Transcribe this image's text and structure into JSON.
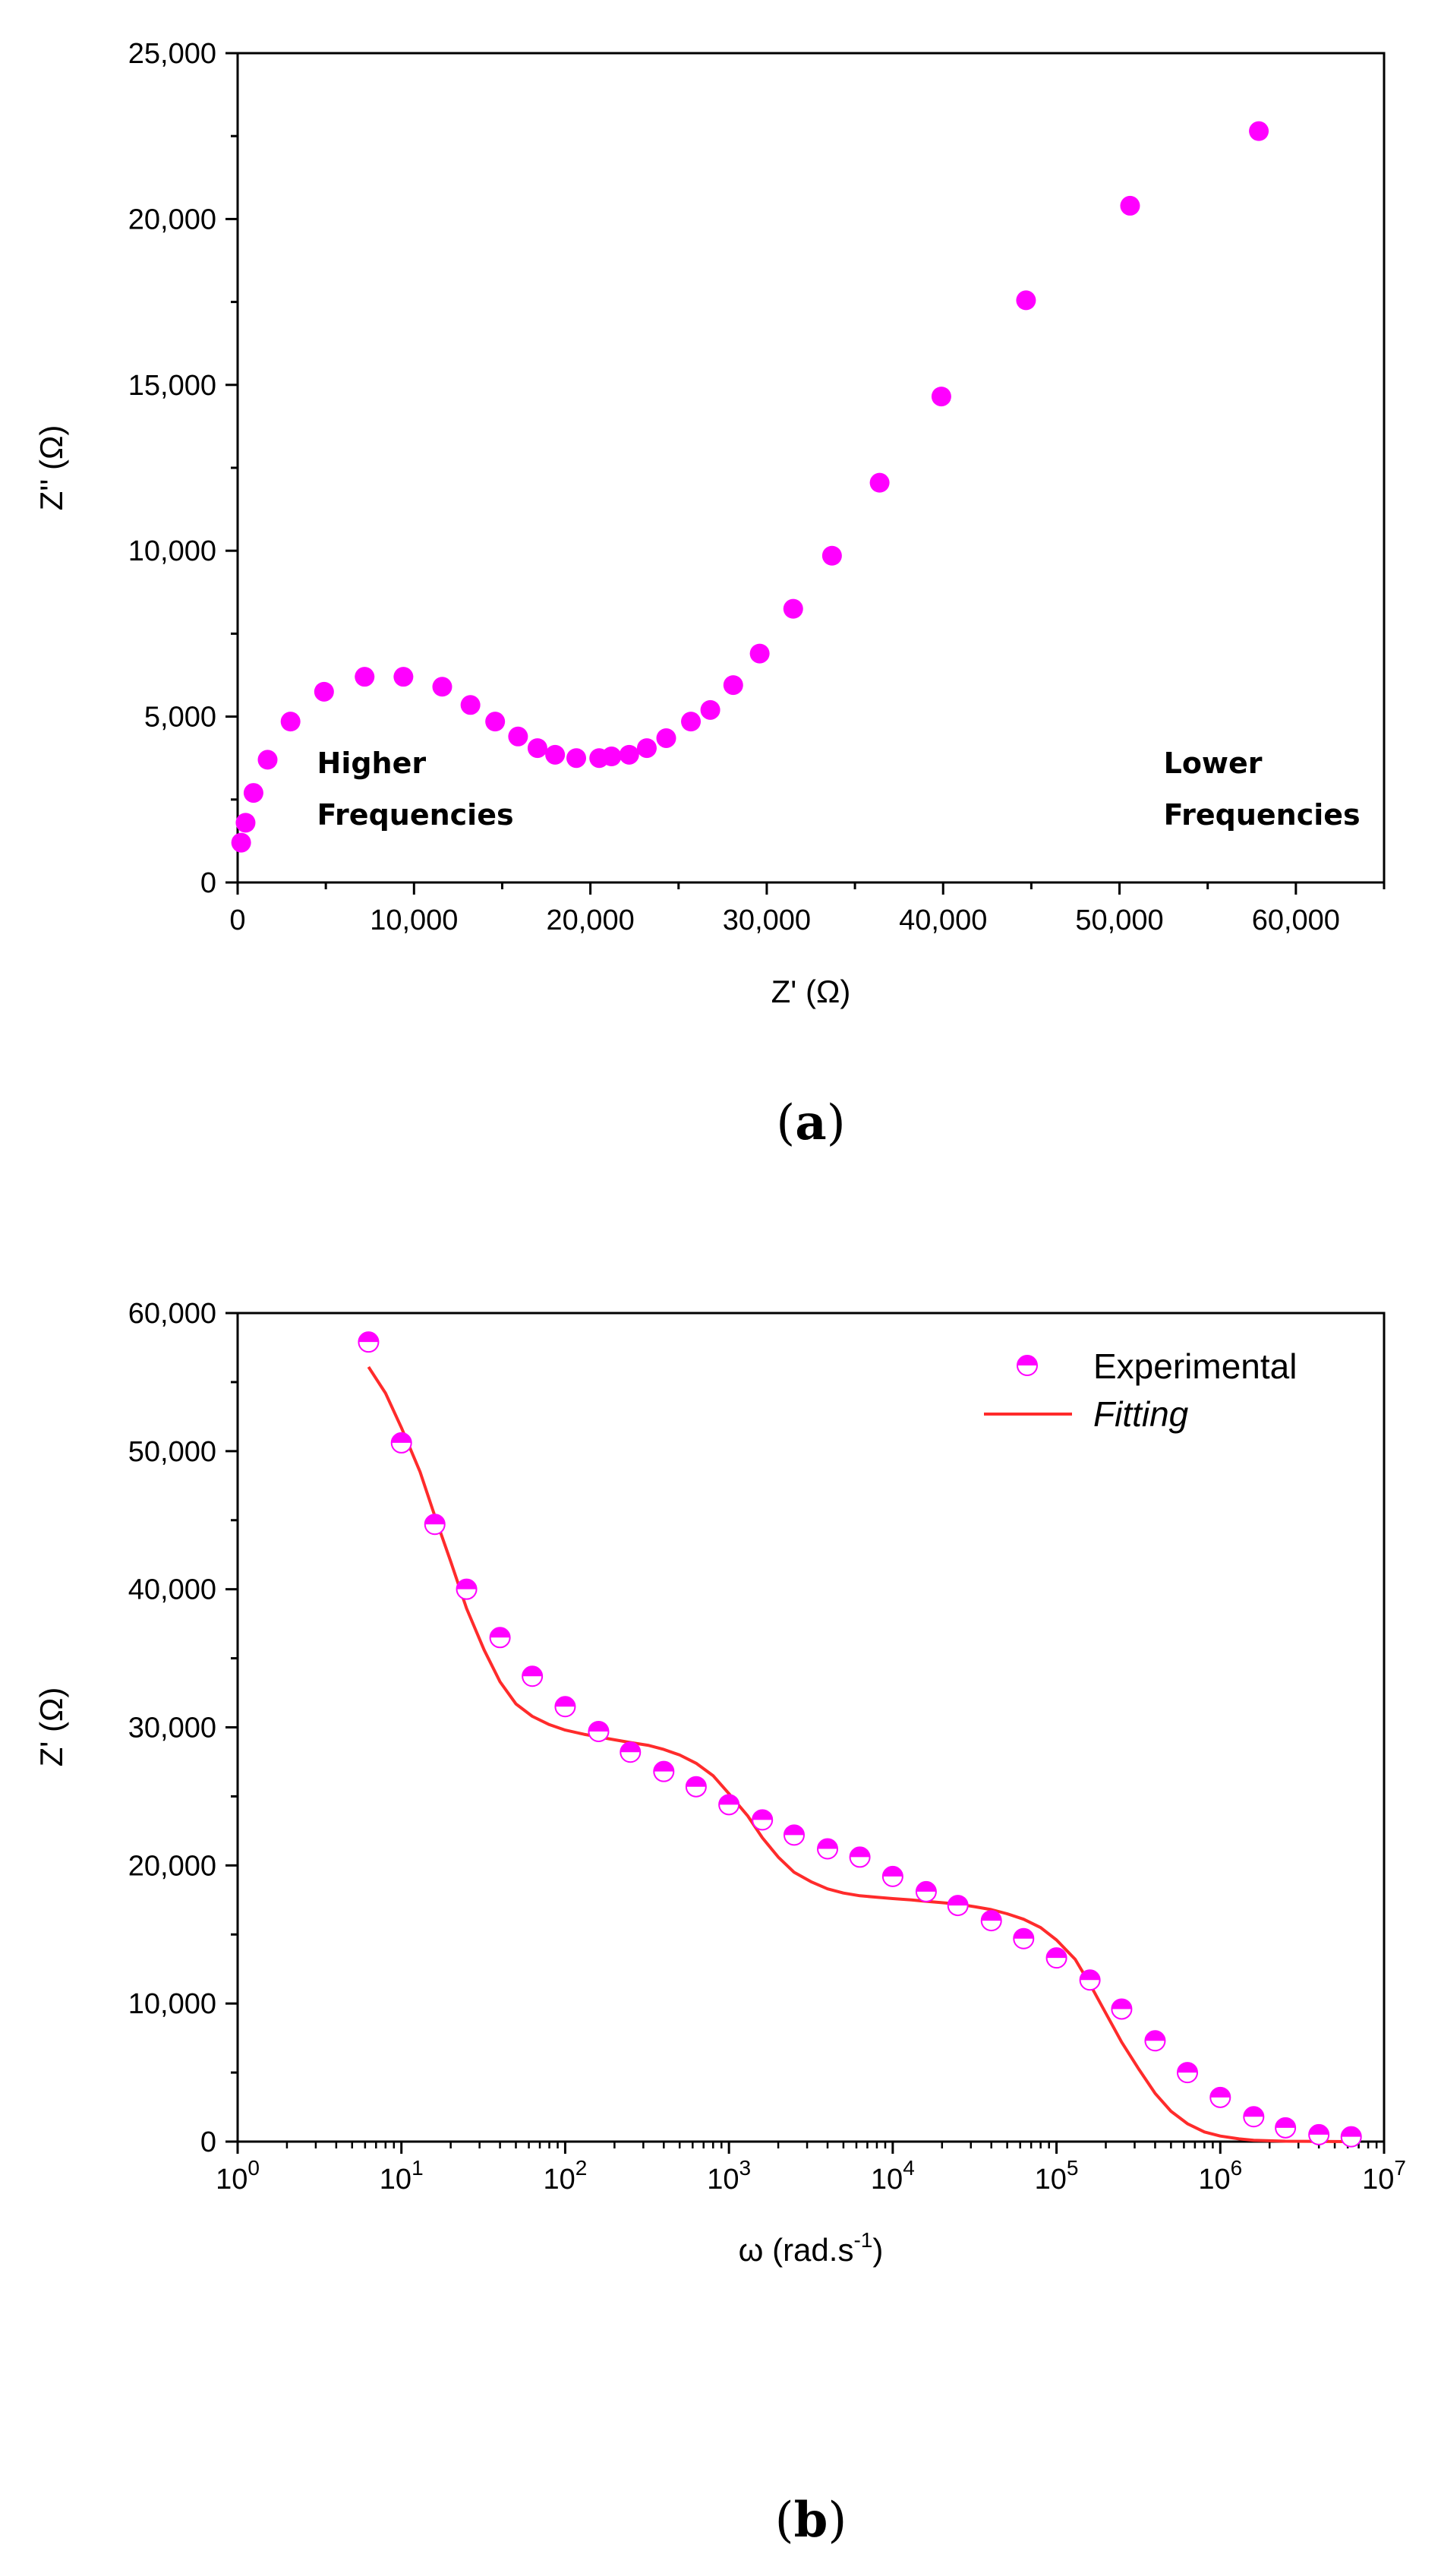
{
  "chart_data": [
    {
      "type": "scatter",
      "panel_label": "a",
      "xlabel": "Z' (Ω)",
      "ylabel": "Z'' (Ω)",
      "xlim": [
        0,
        65000
      ],
      "ylim": [
        0,
        25000
      ],
      "x_ticks": [
        "0",
        "10,000",
        "20,000",
        "30,000",
        "40,000",
        "50,000",
        "60,000"
      ],
      "y_ticks": [
        "0",
        "5,000",
        "10,000",
        "15,000",
        "20,000",
        "25,000"
      ],
      "annotations": [
        {
          "lines": [
            "Higher",
            "Frequencies"
          ],
          "x": 4500,
          "y": 3300
        },
        {
          "lines": [
            "Lower",
            "Frequencies"
          ],
          "x": 52500,
          "y": 3300
        }
      ],
      "marker_color": "#ff00ff",
      "series": [
        {
          "x": [
            200,
            450,
            900,
            1700,
            3000,
            4900,
            7200,
            9400,
            11600,
            13200,
            14600,
            15900,
            17000,
            18000,
            19200,
            20500,
            21200,
            22200,
            23200,
            24300,
            25700,
            26800,
            28100,
            29600,
            31500,
            33700,
            36400,
            39900,
            44700,
            50600,
            57900
          ],
          "y": [
            1200,
            1800,
            2700,
            3700,
            4850,
            5750,
            6200,
            6200,
            5900,
            5350,
            4850,
            4400,
            4050,
            3850,
            3750,
            3750,
            3800,
            3850,
            4050,
            4350,
            4850,
            5200,
            5950,
            6900,
            8250,
            9850,
            12050,
            14650,
            17550,
            20400,
            22650
          ]
        }
      ]
    },
    {
      "type": "scatter",
      "panel_label": "b",
      "xlabel": "ω (rad.s",
      "xlabel_sup": "-1",
      "xlabel_end": ")",
      "ylabel": "Z' (Ω)",
      "xscale": "log",
      "xlim": [
        1,
        10000000
      ],
      "ylim": [
        0,
        60000
      ],
      "x_ticks": [
        {
          "base": "10",
          "exp": "0"
        },
        {
          "base": "10",
          "exp": "1"
        },
        {
          "base": "10",
          "exp": "2"
        },
        {
          "base": "10",
          "exp": "3"
        },
        {
          "base": "10",
          "exp": "4"
        },
        {
          "base": "10",
          "exp": "5"
        },
        {
          "base": "10",
          "exp": "6"
        },
        {
          "base": "10",
          "exp": "7"
        }
      ],
      "y_ticks": [
        "0",
        "10,000",
        "20,000",
        "30,000",
        "40,000",
        "50,000",
        "60,000"
      ],
      "legend_position": "top-right",
      "series": [
        {
          "name": "Experimental",
          "style": "half-filled-circle",
          "color": "#ff00ff",
          "x": [
            6.3,
            10,
            16,
            25,
            40,
            63,
            100,
            160,
            250,
            400,
            630,
            1000,
            1600,
            2500,
            4000,
            6300,
            10000,
            16000,
            25000,
            40000,
            63000,
            100000,
            160000,
            250000,
            400000,
            630000,
            1000000,
            1600000,
            2500000,
            4000000,
            6300000
          ],
          "y": [
            57900,
            50600,
            44700,
            40000,
            36500,
            33700,
            31500,
            29700,
            28200,
            26800,
            25700,
            24400,
            23300,
            22200,
            21200,
            20600,
            19200,
            18100,
            17100,
            16000,
            14700,
            13300,
            11700,
            9600,
            7300,
            5000,
            3200,
            1800,
            1000,
            500,
            350
          ]
        },
        {
          "name": "Fitting",
          "style": "line",
          "color": "#ff2b2b",
          "x": [
            6.3,
            8,
            10,
            13,
            16,
            20,
            25,
            32,
            40,
            50,
            63,
            80,
            100,
            130,
            160,
            200,
            250,
            320,
            400,
            500,
            630,
            800,
            1000,
            1300,
            1600,
            2000,
            2500,
            3200,
            4000,
            5000,
            6300,
            8000,
            10000,
            13000,
            16000,
            20000,
            25000,
            32000,
            40000,
            50000,
            63000,
            80000,
            100000,
            130000,
            160000,
            200000,
            250000,
            320000,
            400000,
            500000,
            630000,
            800000,
            1000000,
            1300000,
            1600000,
            2000000,
            2500000,
            3200000,
            4000000,
            5000000,
            6300000
          ],
          "y": [
            56100,
            54200,
            51700,
            48500,
            45300,
            42000,
            38600,
            35600,
            33300,
            31700,
            30800,
            30200,
            29800,
            29500,
            29300,
            29100,
            28900,
            28700,
            28400,
            28000,
            27400,
            26500,
            25200,
            23600,
            22000,
            20600,
            19500,
            18800,
            18300,
            18000,
            17800,
            17700,
            17600,
            17500,
            17400,
            17300,
            17200,
            17000,
            16800,
            16500,
            16100,
            15500,
            14600,
            13200,
            11400,
            9300,
            7200,
            5200,
            3500,
            2200,
            1300,
            700,
            400,
            200,
            100,
            60,
            30,
            20,
            10,
            5,
            0
          ]
        }
      ]
    }
  ]
}
